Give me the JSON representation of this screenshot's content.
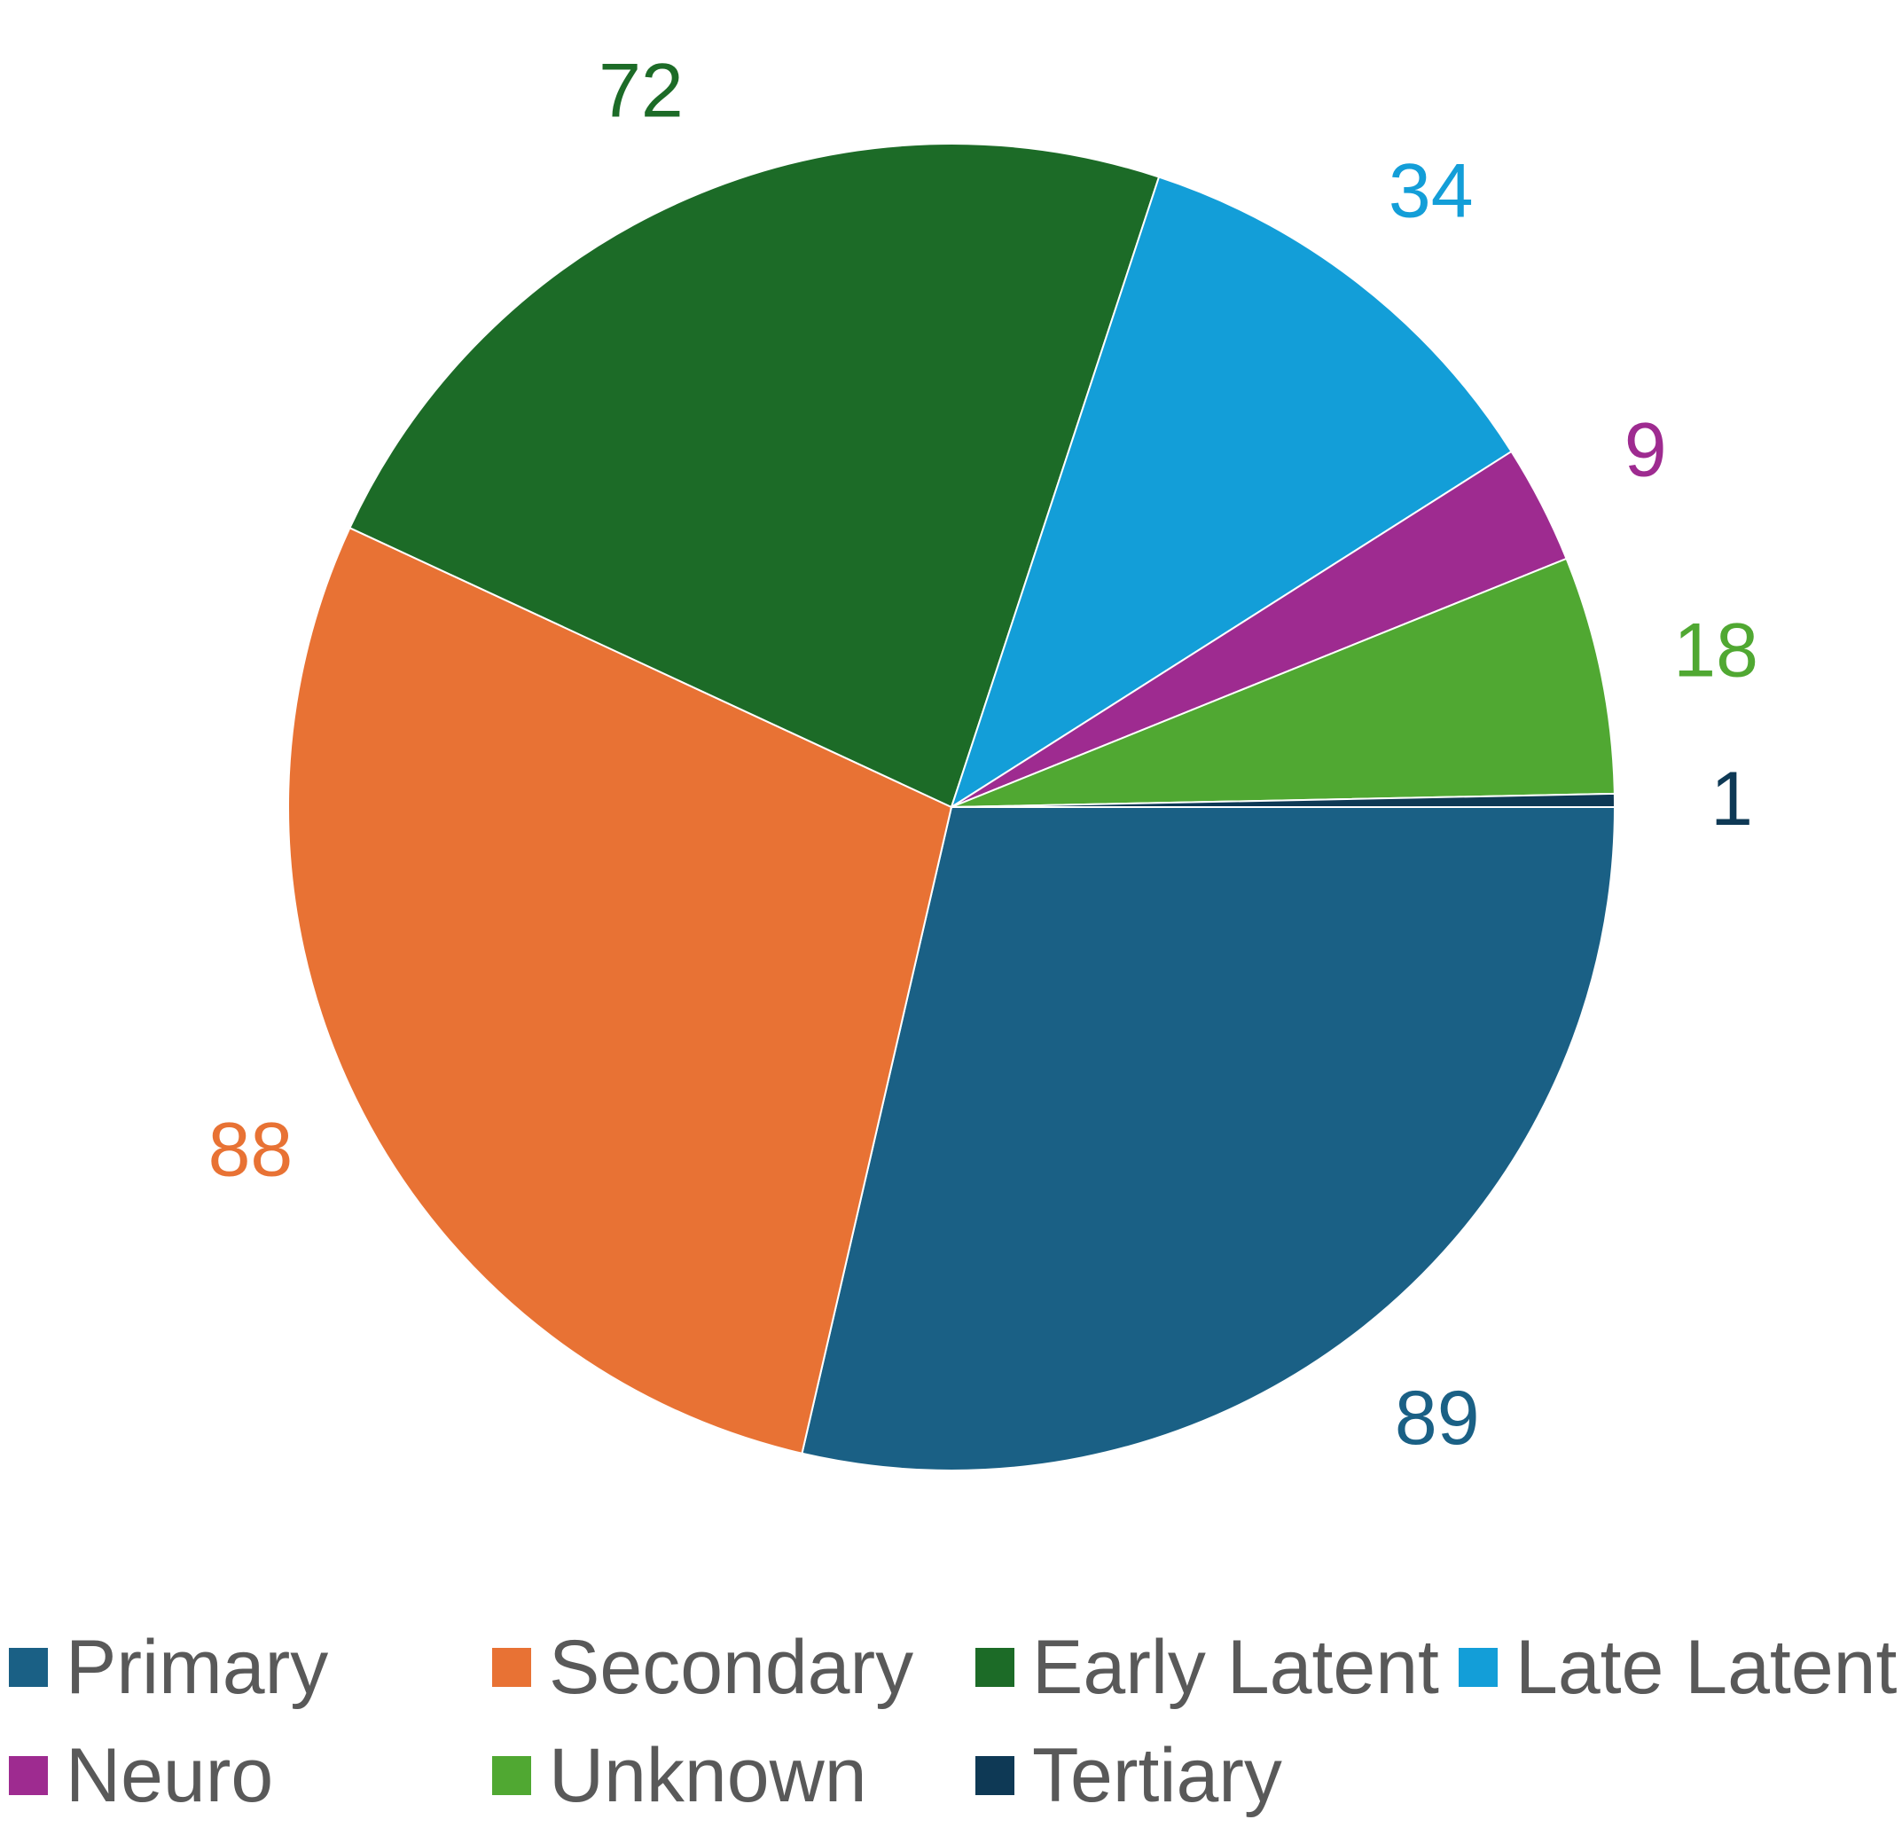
{
  "chart_data": {
    "type": "pie",
    "title": "",
    "categories": [
      "Primary",
      "Secondary",
      "Early Latent",
      "Late Latent",
      "Neuro",
      "Unknown",
      "Tertiary"
    ],
    "values": [
      89,
      88,
      72,
      34,
      9,
      18,
      1
    ],
    "colors": [
      "#1a6085",
      "#e87234",
      "#1c6b27",
      "#139ed8",
      "#9e2b90",
      "#50a832",
      "#0e3955"
    ],
    "data_labels": [
      "89",
      "88",
      "72",
      "34",
      "9",
      "18",
      "1"
    ],
    "start_angle_deg": 0,
    "direction": "clockwise",
    "legend": {
      "position": "bottom",
      "entries": [
        "Primary",
        "Secondary",
        "Early Latent",
        "Late Latent",
        "Neuro",
        "Unknown",
        "Tertiary"
      ]
    }
  }
}
